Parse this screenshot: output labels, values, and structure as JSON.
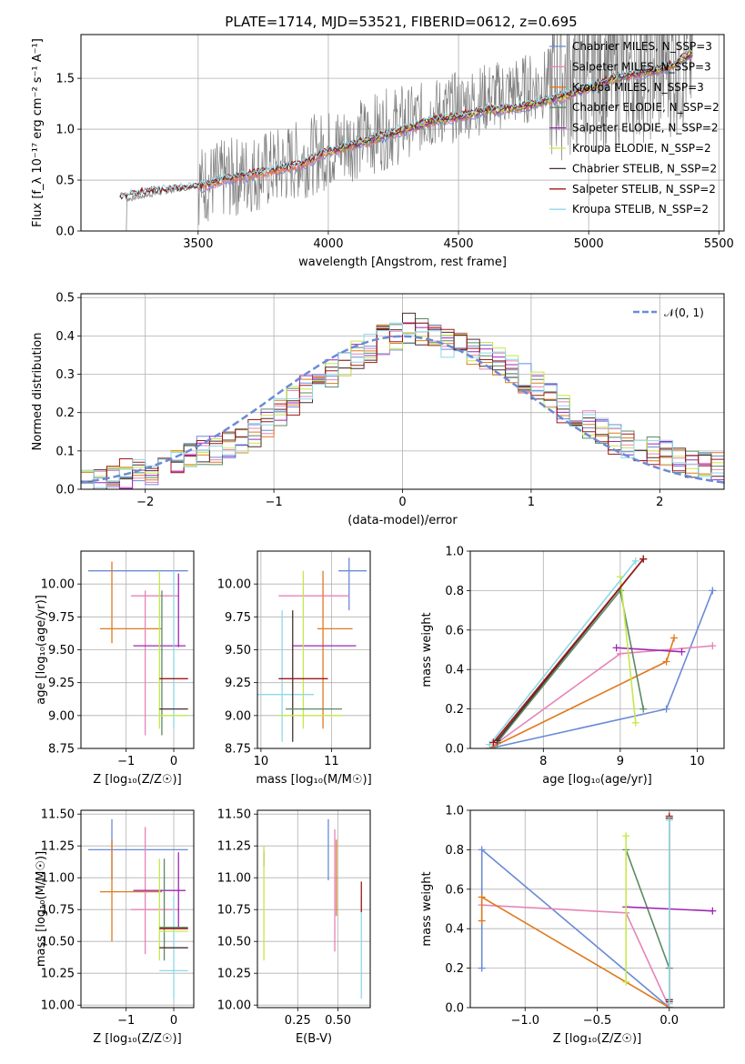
{
  "title": "PLATE=1714, MJD=53521, FIBERID=0612, z=0.695",
  "colors": {
    "Chabrier MILES": "#6a8bd6",
    "Salpeter MILES": "#e684b8",
    "Kroupa MILES": "#e07a1f",
    "Chabrier ELODIE": "#5b8a63",
    "Salpeter ELODIE": "#9e27b5",
    "Kroupa ELODIE": "#c6e84a",
    "Chabrier STELIB": "#4a2f2f",
    "Salpeter STELIB": "#a01818",
    "Kroupa STELIB": "#8ed8e6",
    "data": "#808080",
    "normal": "#6a8bd6"
  },
  "labels": {
    "spectrum_x": "wavelength [Angstrom, rest frame]",
    "spectrum_y": "Flux [f_λ 10⁻¹⁷ erg cm⁻² s⁻¹ A⁻¹]",
    "resid_x": "(data-model)/error",
    "resid_y": "Normed distribution",
    "age_y": "age  [log₁₀(age/yr)]",
    "Z_x": "Z [log₁₀(Z/Z☉)]",
    "mass_x": "mass [log₁₀(M/M☉)]",
    "mw_y": "mass weight",
    "age_x": "age  [log₁₀(age/yr)]",
    "mass_y": "mass [log₁₀(M/M☉)]",
    "ebv_x": "E(B-V)",
    "normal_legend": "𝒩(0, 1)"
  },
  "chart_data": [
    {
      "id": "spectrum",
      "type": "line",
      "title": "PLATE=1714, MJD=53521, FIBERID=0612, z=0.695",
      "xlabel": "wavelength [Angstrom, rest frame]",
      "ylabel": "Flux [f_λ 10⁻¹⁷ erg cm⁻² s⁻¹ A⁻¹]",
      "xlim": [
        3050,
        5520
      ],
      "ylim": [
        0,
        1.93
      ],
      "xticks": [
        3500,
        4000,
        4500,
        5000,
        5500
      ],
      "yticks": [
        0.0,
        0.5,
        1.0,
        1.5
      ],
      "legend_position": "upper right",
      "legend": [
        "Chabrier MILES, N_SSP=3",
        "Salpeter MILES, N_SSP=3",
        "Kroupa MILES, N_SSP=3",
        "Chabrier ELODIE, N_SSP=2",
        "Salpeter ELODIE, N_SSP=2",
        "Kroupa ELODIE, N_SSP=2",
        "Chabrier STELIB, N_SSP=2",
        "Salpeter STELIB, N_SSP=2",
        "Kroupa STELIB, N_SSP=2"
      ],
      "legend_keys": [
        "Chabrier MILES",
        "Salpeter MILES",
        "Kroupa MILES",
        "Chabrier ELODIE",
        "Salpeter ELODIE",
        "Kroupa ELODIE",
        "Chabrier STELIB",
        "Salpeter STELIB",
        "Kroupa STELIB"
      ],
      "data_x": [
        3200,
        3500,
        3800,
        4000,
        4200,
        4400,
        4600,
        4800,
        5000,
        5200,
        5400
      ],
      "data_y": [
        0.3,
        0.45,
        0.62,
        0.8,
        0.98,
        1.15,
        1.3,
        1.42,
        1.55,
        1.65,
        1.75
      ],
      "model_x": [
        3200,
        3300,
        3500,
        3600,
        3800,
        3900,
        4000,
        4100,
        4200,
        4300,
        4400,
        4500,
        4600,
        4700,
        4800,
        4900,
        5000,
        5100,
        5200,
        5300,
        5400
      ],
      "model_y": [
        0.32,
        0.38,
        0.42,
        0.5,
        0.6,
        0.65,
        0.78,
        0.85,
        0.92,
        1.0,
        1.08,
        1.12,
        1.18,
        1.2,
        1.25,
        1.32,
        1.4,
        1.5,
        1.55,
        1.6,
        1.75
      ],
      "model_start_x": {
        "Chabrier MILES": 3500,
        "Salpeter MILES": 3500,
        "Kroupa MILES": 3500,
        "Chabrier ELODIE": 4000,
        "Salpeter ELODIE": 4000,
        "Kroupa ELODIE": 4000,
        "Chabrier STELIB": 3200,
        "Salpeter STELIB": 3200,
        "Kroupa STELIB": 3200
      }
    },
    {
      "id": "residuals",
      "type": "line",
      "xlabel": "(data-model)/error",
      "ylabel": "Normed distribution",
      "xlim": [
        -2.5,
        2.5
      ],
      "ylim": [
        0,
        0.51
      ],
      "xticks": [
        -2,
        -1,
        0,
        1,
        2
      ],
      "yticks": [
        0.0,
        0.1,
        0.2,
        0.3,
        0.4,
        0.5
      ],
      "bin_edges": [
        -2.5,
        -2.4,
        -2.3,
        -2.2,
        -2.1,
        -2.0,
        -1.9,
        -1.8,
        -1.7,
        -1.6,
        -1.5,
        -1.4,
        -1.3,
        -1.2,
        -1.1,
        -1.0,
        -0.9,
        -0.8,
        -0.7,
        -0.6,
        -0.5,
        -0.4,
        -0.3,
        -0.2,
        -0.1,
        0.0,
        0.1,
        0.2,
        0.3,
        0.4,
        0.5,
        0.6,
        0.7,
        0.8,
        0.9,
        1.0,
        1.1,
        1.2,
        1.3,
        1.4,
        1.5,
        1.6,
        1.7,
        1.8,
        1.9,
        2.0,
        2.1,
        2.2,
        2.3,
        2.4,
        2.5
      ],
      "hist_base": [
        0.02,
        0.02,
        0.03,
        0.04,
        0.05,
        0.05,
        0.06,
        0.07,
        0.09,
        0.1,
        0.1,
        0.11,
        0.12,
        0.15,
        0.17,
        0.2,
        0.23,
        0.26,
        0.28,
        0.3,
        0.33,
        0.35,
        0.37,
        0.39,
        0.4,
        0.42,
        0.41,
        0.39,
        0.38,
        0.37,
        0.36,
        0.35,
        0.33,
        0.31,
        0.29,
        0.27,
        0.24,
        0.21,
        0.19,
        0.17,
        0.15,
        0.13,
        0.12,
        0.11,
        0.1,
        0.09,
        0.08,
        0.07,
        0.07,
        0.06
      ],
      "normal_label": "𝒩(0, 1)",
      "normal_legend_position": "upper right"
    },
    {
      "id": "age_vs_Z",
      "type": "scatter",
      "xlabel": "Z [log₁₀(Z/Z☉)]",
      "ylabel": "age  [log₁₀(age/yr)]",
      "xlim": [
        -1.95,
        0.42
      ],
      "ylim": [
        8.75,
        10.25
      ],
      "xticks": [
        -1,
        0
      ],
      "yticks": [
        8.75,
        9.0,
        9.25,
        9.5,
        9.75,
        10.0
      ],
      "points": [
        {
          "key": "Chabrier MILES",
          "x": -0.75,
          "xerr": 1.05,
          "y": 10.1,
          "yerr": 0.0
        },
        {
          "key": "Kroupa MILES",
          "x": -1.3,
          "xerr": 0.0,
          "y": 9.86,
          "yerr": 0.31
        },
        {
          "key": "Kroupa MILES",
          "x": -0.9,
          "xerr": 0.65,
          "y": 9.66,
          "yerr": 0.0
        },
        {
          "key": "Salpeter MILES",
          "x": -0.6,
          "xerr": 0.0,
          "y": 9.4,
          "yerr": 0.55
        },
        {
          "key": "Salpeter MILES",
          "x": -0.4,
          "xerr": 0.5,
          "y": 9.91,
          "yerr": 0.0
        },
        {
          "key": "Salpeter ELODIE",
          "x": -0.3,
          "xerr": 0.55,
          "y": 9.53,
          "yerr": 0.0
        },
        {
          "key": "Salpeter ELODIE",
          "x": 0.1,
          "xerr": 0.0,
          "y": 9.8,
          "yerr": 0.28
        },
        {
          "key": "Kroupa ELODIE",
          "x": -0.3,
          "xerr": 0.0,
          "y": 9.5,
          "yerr": 0.6
        },
        {
          "key": "Chabrier ELODIE",
          "x": -0.25,
          "xerr": 0.0,
          "y": 9.4,
          "yerr": 0.55
        },
        {
          "key": "Kroupa STELIB",
          "x": 0.0,
          "xerr": 0.0,
          "y": 9.5,
          "yerr": 0.6
        },
        {
          "key": "Salpeter STELIB",
          "x": 0.0,
          "xerr": 0.3,
          "y": 9.28,
          "yerr": 0.0
        },
        {
          "key": "Chabrier STELIB",
          "x": 0.0,
          "xerr": 0.3,
          "y": 9.05,
          "yerr": 0.0
        },
        {
          "key": "Kroupa ELODIE",
          "x": 0.0,
          "xerr": 0.3,
          "y": 9.0,
          "yerr": 0.0
        }
      ]
    },
    {
      "id": "age_vs_mass",
      "type": "scatter",
      "xlabel": "mass [log₁₀(M/M☉)]",
      "ylabel": "",
      "xlim": [
        9.95,
        11.55
      ],
      "ylim": [
        8.75,
        10.25
      ],
      "xticks": [
        10,
        11
      ],
      "yticks": [
        8.75,
        9.0,
        9.25,
        9.5,
        9.75,
        10.0
      ],
      "points": [
        {
          "key": "Chabrier MILES",
          "x": 11.25,
          "xerr": 0.0,
          "y": 10.0,
          "yerr": 0.2
        },
        {
          "key": "Chabrier MILES",
          "x": 11.3,
          "xerr": 0.2,
          "y": 10.1,
          "yerr": 0.0
        },
        {
          "key": "Salpeter MILES",
          "x": 10.75,
          "xerr": 0.5,
          "y": 9.91,
          "yerr": 0.0
        },
        {
          "key": "Kroupa MILES",
          "x": 11.05,
          "xerr": 0.25,
          "y": 9.66,
          "yerr": 0.0
        },
        {
          "key": "Kroupa MILES",
          "x": 10.88,
          "xerr": 0.0,
          "y": 9.5,
          "yerr": 0.6
        },
        {
          "key": "Salpeter ELODIE",
          "x": 10.9,
          "xerr": 0.45,
          "y": 9.53,
          "yerr": 0.0
        },
        {
          "key": "Kroupa ELODIE",
          "x": 10.6,
          "xerr": 0.0,
          "y": 9.5,
          "yerr": 0.6
        },
        {
          "key": "Kroupa STELIB",
          "x": 10.3,
          "xerr": 0.0,
          "y": 9.3,
          "yerr": 0.5
        },
        {
          "key": "Kroupa STELIB",
          "x": 10.3,
          "xerr": 0.45,
          "y": 9.16,
          "yerr": 0.0
        },
        {
          "key": "Salpeter STELIB",
          "x": 10.6,
          "xerr": 0.35,
          "y": 9.28,
          "yerr": 0.0
        },
        {
          "key": "Chabrier STELIB",
          "x": 10.45,
          "xerr": 0.0,
          "y": 9.3,
          "yerr": 0.5
        },
        {
          "key": "Chabrier ELODIE",
          "x": 10.75,
          "xerr": 0.4,
          "y": 9.05,
          "yerr": 0.0
        },
        {
          "key": "Kroupa ELODIE",
          "x": 10.7,
          "xerr": 0.45,
          "y": 9.0,
          "yerr": 0.0
        }
      ]
    },
    {
      "id": "mw_vs_age",
      "type": "line",
      "xlabel": "age  [log₁₀(age/yr)]",
      "ylabel": "mass weight",
      "xlim": [
        7.05,
        10.35
      ],
      "ylim": [
        0,
        1
      ],
      "xticks": [
        8,
        9,
        10
      ],
      "yticks": [
        0.0,
        0.2,
        0.4,
        0.6,
        0.8,
        1.0
      ],
      "series": [
        {
          "key": "Chabrier MILES",
          "x": [
            7.3,
            9.6,
            10.2
          ],
          "y": [
            0.0,
            0.2,
            0.8
          ]
        },
        {
          "key": "Salpeter MILES",
          "x": [
            7.3,
            9.0,
            10.2
          ],
          "y": [
            0.0,
            0.48,
            0.52
          ]
        },
        {
          "key": "Kroupa MILES",
          "x": [
            7.3,
            9.6,
            9.7
          ],
          "y": [
            0.0,
            0.44,
            0.56
          ]
        },
        {
          "key": "Chabrier ELODIE",
          "x": [
            7.4,
            9.0,
            9.3
          ],
          "y": [
            0.03,
            0.8,
            0.2
          ]
        },
        {
          "key": "Salpeter ELODIE",
          "x": [
            8.95,
            9.8
          ],
          "y": [
            0.51,
            0.49
          ]
        },
        {
          "key": "Kroupa ELODIE",
          "x": [
            9.0,
            9.2
          ],
          "y": [
            0.87,
            0.13
          ]
        },
        {
          "key": "Chabrier STELIB",
          "x": [
            7.4,
            9.3
          ],
          "y": [
            0.04,
            0.96
          ]
        },
        {
          "key": "Kroupa STELIB",
          "x": [
            7.3,
            9.2
          ],
          "y": [
            0.02,
            0.95
          ]
        },
        {
          "key": "Salpeter STELIB",
          "x": [
            7.35,
            9.3
          ],
          "y": [
            0.03,
            0.96
          ]
        }
      ]
    },
    {
      "id": "mass_vs_Z",
      "type": "scatter",
      "xlabel": "Z [log₁₀(Z/Z☉)]",
      "ylabel": "mass [log₁₀(M/M☉)]",
      "xlim": [
        -1.95,
        0.42
      ],
      "ylim": [
        9.98,
        11.53
      ],
      "xticks": [
        -1,
        0
      ],
      "yticks": [
        10.0,
        10.25,
        10.5,
        10.75,
        11.0,
        11.25,
        11.5
      ],
      "points": [
        {
          "key": "Chabrier MILES",
          "x": -0.75,
          "xerr": 1.05,
          "y": 11.22,
          "yerr": 0.0
        },
        {
          "key": "Chabrier MILES",
          "x": -1.3,
          "xerr": 0.0,
          "y": 11.22,
          "yerr": 0.24
        },
        {
          "key": "Kroupa MILES",
          "x": -1.3,
          "xerr": 0.0,
          "y": 10.9,
          "yerr": 0.4
        },
        {
          "key": "Kroupa MILES",
          "x": -0.9,
          "xerr": 0.65,
          "y": 10.89,
          "yerr": 0.0
        },
        {
          "key": "Salpeter MILES",
          "x": -0.6,
          "xerr": 0.0,
          "y": 10.9,
          "yerr": 0.5
        },
        {
          "key": "Salpeter MILES",
          "x": -0.4,
          "xerr": 0.5,
          "y": 10.75,
          "yerr": 0.0
        },
        {
          "key": "Salpeter ELODIE",
          "x": -0.3,
          "xerr": 0.55,
          "y": 10.9,
          "yerr": 0.0
        },
        {
          "key": "Salpeter ELODIE",
          "x": 0.1,
          "xerr": 0.0,
          "y": 10.9,
          "yerr": 0.3
        },
        {
          "key": "Kroupa ELODIE",
          "x": -0.3,
          "xerr": 0.0,
          "y": 10.75,
          "yerr": 0.4
        },
        {
          "key": "Chabrier ELODIE",
          "x": -0.2,
          "xerr": 0.0,
          "y": 10.75,
          "yerr": 0.4
        },
        {
          "key": "Kroupa STELIB",
          "x": 0.0,
          "xerr": 0.0,
          "y": 10.45,
          "yerr": 0.4
        },
        {
          "key": "Kroupa STELIB",
          "x": 0.0,
          "xerr": 0.3,
          "y": 10.27,
          "yerr": 0.0
        },
        {
          "key": "Chabrier STELIB",
          "x": 0.0,
          "xerr": 0.3,
          "y": 10.45,
          "yerr": 0.0
        },
        {
          "key": "Salpeter STELIB",
          "x": 0.0,
          "xerr": 0.3,
          "y": 10.6,
          "yerr": 0.0
        },
        {
          "key": "Chabrier ELODIE",
          "x": 0.0,
          "xerr": 0.3,
          "y": 10.61,
          "yerr": 0.0
        },
        {
          "key": "Kroupa ELODIE",
          "x": 0.0,
          "xerr": 0.3,
          "y": 10.58,
          "yerr": 0.0
        }
      ]
    },
    {
      "id": "mass_vs_ebv",
      "type": "scatter",
      "xlabel": "E(B-V)",
      "ylabel": "",
      "xlim": [
        0.0,
        0.7
      ],
      "ylim": [
        9.98,
        11.53
      ],
      "xticks": [
        0.25,
        0.5
      ],
      "yticks": [
        10.0,
        10.25,
        10.5,
        10.75,
        11.0,
        11.25,
        11.5
      ],
      "points": [
        {
          "key": "Salpeter ELODIE",
          "x": 0.04,
          "xerr": 0.0,
          "y": 11.15,
          "yerr": 0.06
        },
        {
          "key": "Kroupa ELODIE",
          "x": 0.04,
          "xerr": 0.0,
          "y": 10.8,
          "yerr": 0.45
        },
        {
          "key": "Chabrier MILES",
          "x": 0.44,
          "xerr": 0.0,
          "y": 11.22,
          "yerr": 0.24
        },
        {
          "key": "Salpeter MILES",
          "x": 0.48,
          "xerr": 0.0,
          "y": 10.9,
          "yerr": 0.48
        },
        {
          "key": "Kroupa MILES",
          "x": 0.49,
          "xerr": 0.0,
          "y": 11.0,
          "yerr": 0.3
        },
        {
          "key": "Kroupa STELIB",
          "x": 0.645,
          "xerr": 0.0,
          "y": 10.45,
          "yerr": 0.4
        },
        {
          "key": "Salpeter STELIB",
          "x": 0.645,
          "xerr": 0.0,
          "y": 10.85,
          "yerr": 0.12
        }
      ]
    },
    {
      "id": "mw_vs_Z",
      "type": "line",
      "xlabel": "Z [log₁₀(Z/Z☉)]",
      "ylabel": "mass weight",
      "xlim": [
        -1.38,
        0.38
      ],
      "ylim": [
        0,
        1
      ],
      "xticks": [
        -1.0,
        -0.5,
        0.0
      ],
      "yticks": [
        0.0,
        0.2,
        0.4,
        0.6,
        0.8,
        1.0
      ],
      "series": [
        {
          "key": "Chabrier MILES",
          "x": [
            -1.3,
            -1.3,
            0.0
          ],
          "y": [
            0.2,
            0.8,
            0.0
          ]
        },
        {
          "key": "Salpeter MILES",
          "x": [
            -1.3,
            -0.3,
            0.0
          ],
          "y": [
            0.52,
            0.48,
            0.0
          ]
        },
        {
          "key": "Kroupa MILES",
          "x": [
            -1.3,
            -1.3,
            0.0
          ],
          "y": [
            0.44,
            0.56,
            0.0
          ]
        },
        {
          "key": "Chabrier ELODIE",
          "x": [
            -0.3,
            0.0
          ],
          "y": [
            0.8,
            0.2
          ]
        },
        {
          "key": "Salpeter ELODIE",
          "x": [
            -0.3,
            0.3
          ],
          "y": [
            0.51,
            0.49
          ]
        },
        {
          "key": "Kroupa ELODIE",
          "x": [
            -0.3,
            -0.3
          ],
          "y": [
            0.13,
            0.87
          ]
        },
        {
          "key": "Chabrier STELIB",
          "x": [
            0.0,
            0.0
          ],
          "y": [
            0.04,
            0.96
          ]
        },
        {
          "key": "Salpeter STELIB",
          "x": [
            0.0,
            0.0
          ],
          "y": [
            0.03,
            0.97
          ]
        },
        {
          "key": "Kroupa STELIB",
          "x": [
            0.0,
            0.0
          ],
          "y": [
            0.02,
            0.95
          ]
        }
      ]
    }
  ]
}
